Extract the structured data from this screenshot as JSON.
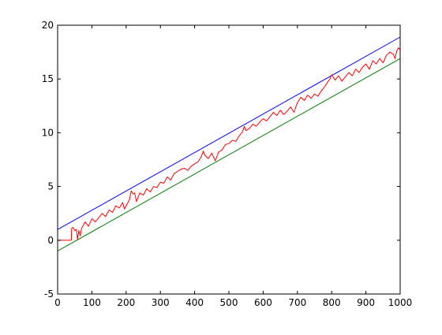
{
  "chart_data": {
    "type": "line",
    "title": "",
    "xlabel": "",
    "ylabel": "",
    "xlim": [
      0,
      1000
    ],
    "ylim": [
      -5,
      20
    ],
    "grid": false,
    "legend": "none",
    "x_ticks": [
      "0",
      "100",
      "200",
      "300",
      "400",
      "500",
      "600",
      "700",
      "800",
      "900",
      "1000"
    ],
    "y_ticks": [
      "-5",
      "0",
      "5",
      "10",
      "15",
      "20"
    ],
    "series": [
      {
        "color": "#0000ff",
        "style": "straight line",
        "x": [
          0,
          1000
        ],
        "y": [
          1.0,
          18.9
        ]
      },
      {
        "color": "#007f00",
        "style": "straight line",
        "x": [
          0,
          1000
        ],
        "y": [
          -1.0,
          16.9
        ]
      },
      {
        "color": "#ff0000",
        "style": "noisy random walk",
        "x": [
          0,
          40,
          41,
          45,
          50,
          55,
          58,
          62,
          66,
          70,
          80,
          90,
          100,
          110,
          120,
          130,
          140,
          150,
          160,
          170,
          180,
          190,
          195,
          200,
          210,
          215,
          220,
          225,
          230,
          240,
          250,
          260,
          270,
          280,
          290,
          300,
          310,
          320,
          330,
          340,
          350,
          360,
          370,
          380,
          390,
          400,
          410,
          420,
          425,
          430,
          440,
          450,
          460,
          465,
          470,
          480,
          490,
          500,
          510,
          520,
          530,
          540,
          545,
          550,
          560,
          570,
          580,
          590,
          600,
          610,
          620,
          630,
          640,
          650,
          660,
          670,
          680,
          690,
          700,
          710,
          720,
          730,
          740,
          750,
          760,
          770,
          780,
          790,
          795,
          800,
          810,
          820,
          830,
          840,
          850,
          860,
          870,
          880,
          890,
          900,
          910,
          920,
          930,
          940,
          950,
          960,
          970,
          980,
          985,
          990,
          995,
          1000
        ],
        "y": [
          0.0,
          0.0,
          1.1,
          1.2,
          0.9,
          1.0,
          0.1,
          0.9,
          0.4,
          1.1,
          1.7,
          1.3,
          2.0,
          1.7,
          2.1,
          2.5,
          2.2,
          2.8,
          2.6,
          3.2,
          3.0,
          3.5,
          2.9,
          3.2,
          3.8,
          4.6,
          4.3,
          4.4,
          3.6,
          4.4,
          4.2,
          4.8,
          4.5,
          5.0,
          4.9,
          5.4,
          5.3,
          5.9,
          5.6,
          6.2,
          6.4,
          6.6,
          6.7,
          6.5,
          6.9,
          7.1,
          7.3,
          7.8,
          8.3,
          7.9,
          7.6,
          8.1,
          7.4,
          7.8,
          8.2,
          8.4,
          8.9,
          9.0,
          9.3,
          9.2,
          9.7,
          10.1,
          10.6,
          10.2,
          10.4,
          10.8,
          10.6,
          11.0,
          11.3,
          11.1,
          11.5,
          11.9,
          11.6,
          12.1,
          11.7,
          12.0,
          12.4,
          11.9,
          12.8,
          13.3,
          13.0,
          13.5,
          13.2,
          13.6,
          13.4,
          13.9,
          14.3,
          14.8,
          15.0,
          15.4,
          14.9,
          15.3,
          14.8,
          15.2,
          15.6,
          15.3,
          15.9,
          15.6,
          16.1,
          16.4,
          15.9,
          16.7,
          16.4,
          16.9,
          16.5,
          17.2,
          17.5,
          17.3,
          16.9,
          17.6,
          17.9,
          17.7
        ]
      }
    ]
  }
}
